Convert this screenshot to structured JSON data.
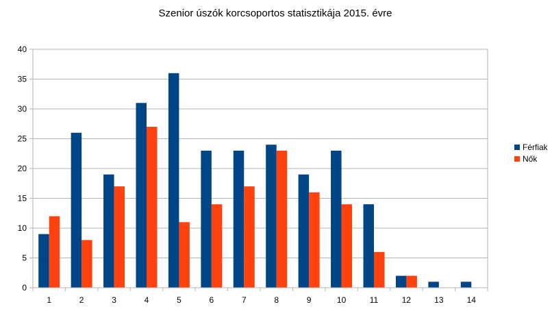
{
  "chart_data": {
    "type": "bar",
    "title": "Szenior úszók korcsoportos statisztikája 2015. évre",
    "xlabel": "",
    "ylabel": "",
    "categories": [
      "1",
      "2",
      "3",
      "4",
      "5",
      "6",
      "7",
      "8",
      "9",
      "10",
      "11",
      "12",
      "13",
      "14"
    ],
    "series": [
      {
        "name": "Férfiak",
        "color": "#004586",
        "values": [
          9,
          26,
          19,
          31,
          36,
          23,
          23,
          24,
          19,
          23,
          14,
          2,
          1,
          1
        ]
      },
      {
        "name": "Nők",
        "color": "#ff420e",
        "values": [
          12,
          8,
          17,
          27,
          11,
          14,
          17,
          23,
          16,
          14,
          6,
          2,
          0,
          0
        ]
      }
    ],
    "ylim": [
      0,
      40
    ],
    "yticks": [
      "0",
      "5",
      "10",
      "15",
      "20",
      "25",
      "30",
      "35",
      "40"
    ],
    "grid": true,
    "legend_position": "right"
  }
}
